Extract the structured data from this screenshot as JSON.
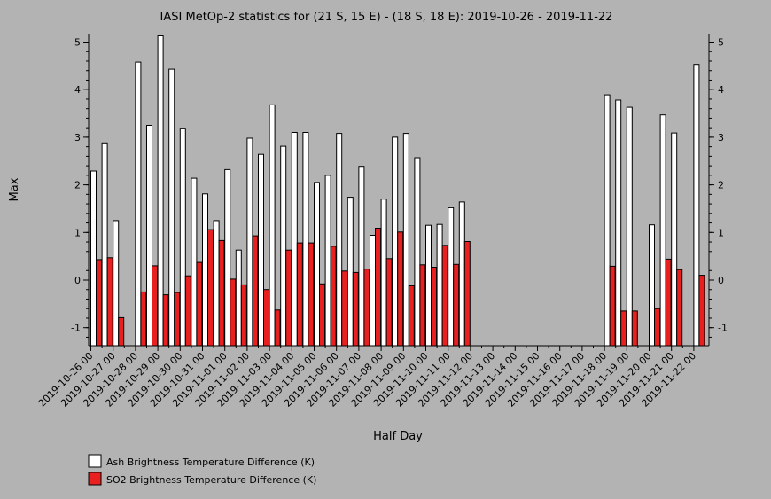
{
  "chart_data": {
    "type": "bar",
    "title": "IASI MetOp-2 statistics for (21 S, 15 E) - (18 S, 18 E): 2019-10-26 - 2019-11-22",
    "xlabel": "Half Day",
    "ylabel": "Max",
    "ylim": [
      -1.4,
      5.2
    ],
    "yticks": [
      -1,
      0,
      1,
      2,
      3,
      4,
      5
    ],
    "tick_labels": [
      "2019-10-26 00",
      "2019-10-27 00",
      "2019-10-28 00",
      "2019-10-29 00",
      "2019-10-30 00",
      "2019-10-31 00",
      "2019-11-01 00",
      "2019-11-02 00",
      "2019-11-03 00",
      "2019-11-04 00",
      "2019-11-05 00",
      "2019-11-06 00",
      "2019-11-07 00",
      "2019-11-08 00",
      "2019-11-09 00",
      "2019-11-10 00",
      "2019-11-11 00",
      "2019-11-12 00",
      "2019-11-13 00",
      "2019-11-14 00",
      "2019-11-15 00",
      "2019-11-16 00",
      "2019-11-17 00",
      "2019-11-18 00",
      "2019-11-19 00",
      "2019-11-20 00",
      "2019-11-21 00",
      "2019-11-22 00"
    ],
    "categories": [
      "2019-10-26 00",
      "2019-10-26 12",
      "2019-10-27 00",
      "2019-10-27 12",
      "2019-10-28 00",
      "2019-10-28 12",
      "2019-10-29 00",
      "2019-10-29 12",
      "2019-10-30 00",
      "2019-10-30 12",
      "2019-10-31 00",
      "2019-10-31 12",
      "2019-11-01 00",
      "2019-11-01 12",
      "2019-11-02 00",
      "2019-11-02 12",
      "2019-11-03 00",
      "2019-11-03 12",
      "2019-11-04 00",
      "2019-11-04 12",
      "2019-11-05 00",
      "2019-11-05 12",
      "2019-11-06 00",
      "2019-11-06 12",
      "2019-11-07 00",
      "2019-11-07 12",
      "2019-11-08 00",
      "2019-11-08 12",
      "2019-11-09 00",
      "2019-11-09 12",
      "2019-11-10 00",
      "2019-11-10 12",
      "2019-11-11 00",
      "2019-11-11 12",
      "2019-11-12 00",
      "2019-11-12 12",
      "2019-11-13 00",
      "2019-11-13 12",
      "2019-11-14 00",
      "2019-11-14 12",
      "2019-11-15 00",
      "2019-11-15 12",
      "2019-11-16 00",
      "2019-11-16 12",
      "2019-11-17 00",
      "2019-11-17 12",
      "2019-11-18 00",
      "2019-11-18 12",
      "2019-11-19 00",
      "2019-11-19 12",
      "2019-11-20 00",
      "2019-11-20 12",
      "2019-11-21 00",
      "2019-11-21 12",
      "2019-11-22 00",
      "2019-11-22 12"
    ],
    "series": [
      {
        "name": "Ash Brightness Temperature Difference (K)",
        "color": "#ffffff",
        "values": [
          2.29,
          2.88,
          1.25,
          null,
          4.58,
          3.25,
          5.13,
          4.43,
          3.19,
          2.14,
          1.81,
          1.25,
          2.32,
          0.63,
          2.98,
          2.64,
          3.68,
          2.81,
          3.1,
          3.1,
          2.05,
          2.2,
          3.08,
          1.74,
          2.39,
          0.94,
          1.7,
          3.0,
          3.08,
          2.57,
          1.15,
          1.17,
          1.52,
          1.64,
          null,
          null,
          null,
          null,
          null,
          null,
          null,
          null,
          null,
          null,
          null,
          null,
          3.89,
          3.78,
          3.63,
          null,
          1.16,
          3.47,
          3.09,
          null,
          4.53,
          null
        ]
      },
      {
        "name": "SO2 Brightness Temperature Difference (K)",
        "color": "#e8201f",
        "values": [
          0.43,
          0.47,
          -0.79,
          null,
          -0.25,
          0.3,
          -0.31,
          -0.26,
          0.09,
          0.37,
          1.06,
          0.83,
          0.02,
          -0.1,
          0.93,
          -0.2,
          -0.63,
          0.63,
          0.78,
          0.78,
          -0.08,
          0.71,
          0.19,
          0.16,
          0.23,
          1.09,
          0.45,
          1.01,
          -0.12,
          0.32,
          0.27,
          0.73,
          0.33,
          0.81,
          null,
          null,
          null,
          null,
          null,
          null,
          null,
          null,
          null,
          null,
          null,
          null,
          0.29,
          -0.65,
          -0.65,
          null,
          -0.6,
          0.44,
          0.22,
          null,
          0.1,
          null
        ]
      }
    ],
    "legend_position": "bottom-left"
  }
}
